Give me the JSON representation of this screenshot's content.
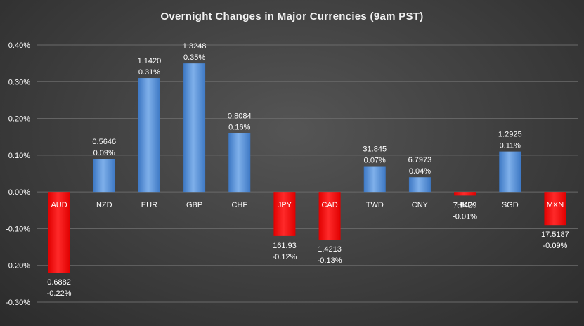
{
  "chart_data": {
    "type": "bar",
    "title": "Overnight Changes in Major Currencies (9am PST)",
    "categories": [
      "AUD",
      "NZD",
      "EUR",
      "GBP",
      "CHF",
      "JPY",
      "CAD",
      "TWD",
      "CNY",
      "HKD",
      "SGD",
      "MXN"
    ],
    "values": [
      -0.22,
      0.09,
      0.31,
      0.35,
      0.16,
      -0.12,
      -0.13,
      0.07,
      0.04,
      -0.01,
      0.11,
      -0.09
    ],
    "rates": [
      "0.6882",
      "0.5646",
      "1.1420",
      "1.3248",
      "0.8084",
      "161.93",
      "1.4213",
      "31.845",
      "6.7973",
      "7.8429",
      "1.2925",
      "17.5187"
    ],
    "value_labels": [
      "-0.22%",
      "0.09%",
      "0.31%",
      "0.35%",
      "0.16%",
      "-0.12%",
      "-0.13%",
      "0.07%",
      "0.04%",
      "-0.01%",
      "0.11%",
      "-0.09%"
    ],
    "yticks": [
      0.4,
      0.3,
      0.2,
      0.1,
      0.0,
      -0.1,
      -0.2,
      -0.3
    ],
    "ytick_labels": [
      "0.40%",
      "0.30%",
      "0.20%",
      "0.10%",
      "0.00%",
      "-0.10%",
      "-0.20%",
      "-0.30%"
    ],
    "ylim": [
      -0.3,
      0.4
    ],
    "xlabel": "",
    "ylabel": "",
    "grid": true,
    "colors": {
      "positive": "#5b9bd5",
      "negative": "#ff0000",
      "text": "#ffffff",
      "grid": "#6a6a6a"
    }
  }
}
